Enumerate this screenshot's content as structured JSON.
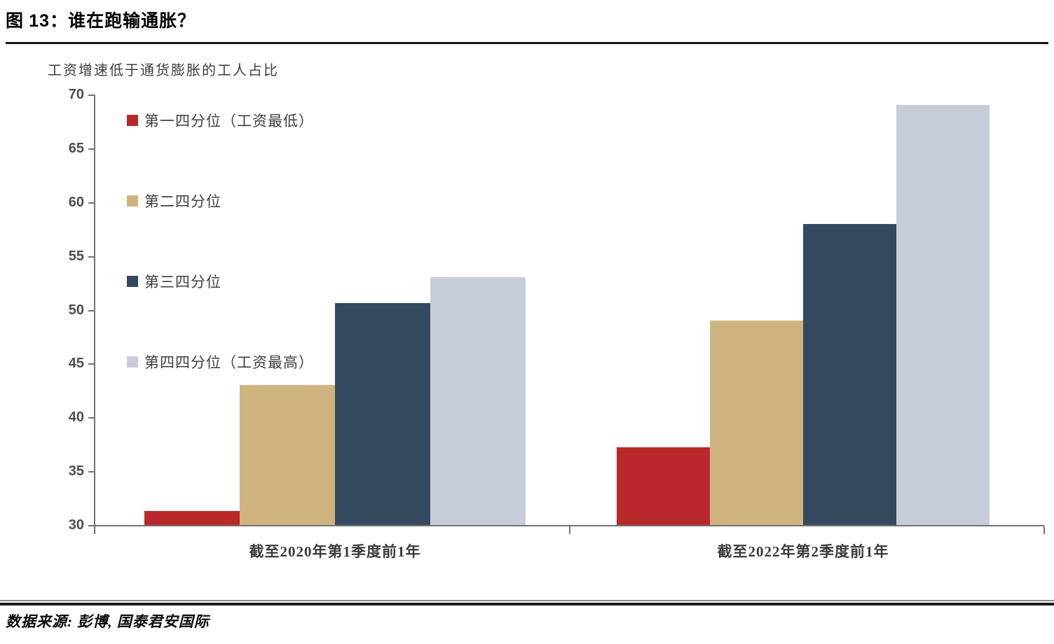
{
  "figure": {
    "title_prefix": "图 ",
    "title_number": "13",
    "title_rest": "：谁在跑输通胀？"
  },
  "source": {
    "label": "数据来源: 彭博, 国泰君安国际"
  },
  "chart_data": {
    "type": "bar",
    "title": "图 13：谁在跑输通胀？",
    "subtitle": "工资增速低于通货膨胀的工人占比",
    "categories": [
      "截至2020年第1季度前1年",
      "截至2022年第2季度前1年"
    ],
    "series": [
      {
        "name": "第一四分位（工资最低）",
        "color": "#b9282a",
        "values": [
          31.3,
          37.2
        ]
      },
      {
        "name": "第二四分位",
        "color": "#cfb37e",
        "values": [
          43.0,
          49.0
        ]
      },
      {
        "name": "第三四分位",
        "color": "#35495e",
        "values": [
          50.6,
          58.0
        ]
      },
      {
        "name": "第四四分位（工资最高）",
        "color": "#c6cdd9",
        "values": [
          53.0,
          69.0
        ]
      }
    ],
    "ylabel": "",
    "xlabel": "",
    "ylim": [
      30,
      70
    ],
    "yticks": [
      30,
      35,
      40,
      45,
      50,
      55,
      60,
      65,
      70
    ],
    "grid": false,
    "legend_position": "top-left",
    "axis_color": "#737373"
  }
}
